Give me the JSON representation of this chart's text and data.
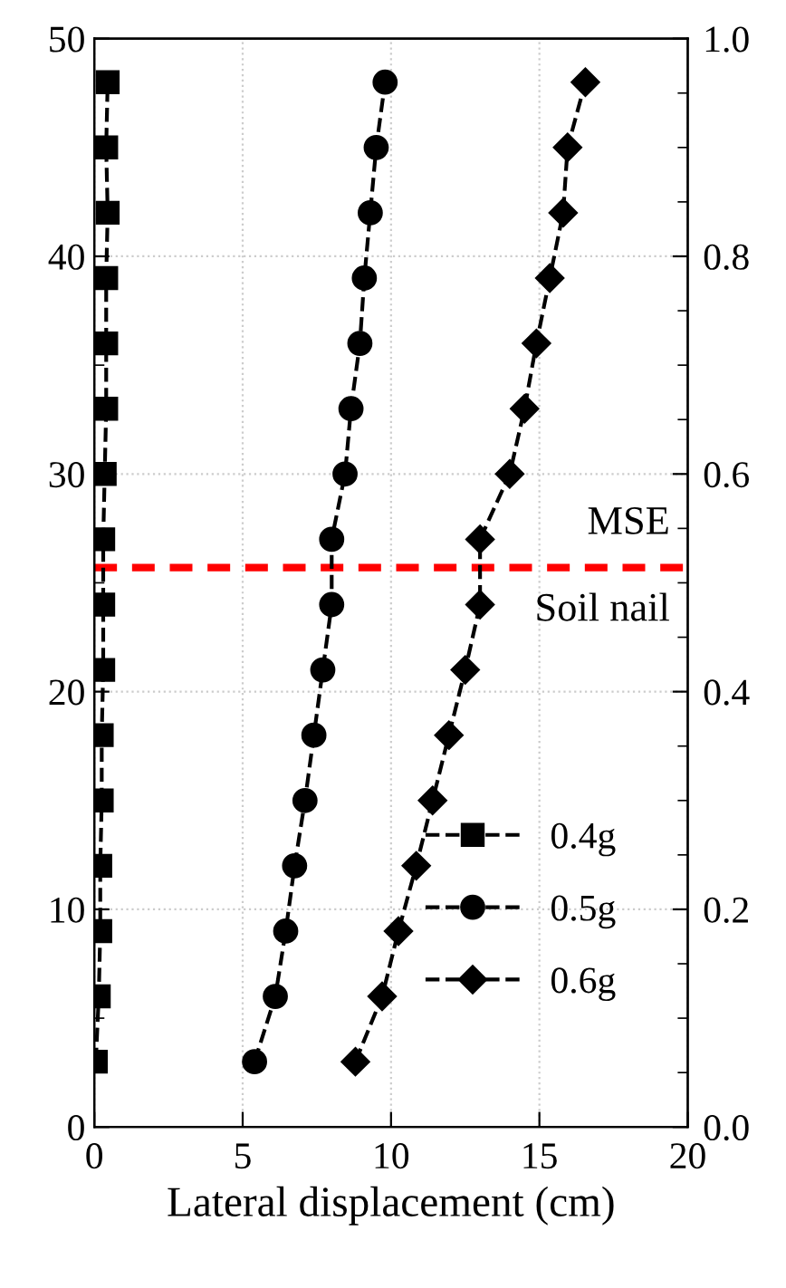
{
  "chart_data": {
    "type": "line",
    "xlabel": "Lateral displacement (cm)",
    "xlim": [
      0,
      20
    ],
    "xticks": [
      0,
      5,
      10,
      15,
      20
    ],
    "ylim": [
      0,
      50
    ],
    "yticks": [
      0,
      10,
      20,
      30,
      40,
      50
    ],
    "y2lim": [
      0,
      1.0
    ],
    "y2ticks": [
      {
        "value": 0,
        "label": "0.0"
      },
      0.2,
      0.4,
      0.6,
      0.8,
      {
        "value": 1.0,
        "label": "1.0"
      }
    ],
    "grid": true,
    "legend": "bottom right",
    "line_style": "dashed",
    "series": [
      {
        "name": "0.4g",
        "color": "#000000",
        "marker": "square",
        "x": [
          0.05,
          0.15,
          0.2,
          0.2,
          0.25,
          0.25,
          0.3,
          0.3,
          0.3,
          0.35,
          0.4,
          0.4,
          0.4,
          0.45,
          0.4,
          0.45
        ],
        "values": [
          3,
          6,
          9,
          12,
          15,
          18,
          21,
          24,
          27,
          30,
          33,
          36,
          39,
          42,
          45,
          48
        ]
      },
      {
        "name": "0.5g",
        "color": "#000000",
        "marker": "circle",
        "x": [
          5.4,
          6.1,
          6.45,
          6.75,
          7.1,
          7.4,
          7.7,
          8.0,
          8.0,
          8.45,
          8.65,
          8.95,
          9.1,
          9.3,
          9.5,
          9.8
        ],
        "values": [
          3,
          6,
          9,
          12,
          15,
          18,
          21,
          24,
          27,
          30,
          33,
          36,
          39,
          42,
          45,
          48
        ]
      },
      {
        "name": "0.6g",
        "color": "#000000",
        "marker": "diamond",
        "x": [
          8.8,
          9.7,
          10.25,
          10.85,
          11.4,
          11.95,
          12.5,
          13.0,
          13.0,
          14.0,
          14.5,
          14.9,
          15.35,
          15.8,
          15.95,
          16.55
        ],
        "values": [
          3,
          6,
          9,
          12,
          15,
          18,
          21,
          24,
          27,
          30,
          33,
          36,
          39,
          42,
          45,
          48
        ]
      }
    ],
    "ref_lines": [
      {
        "axis": "y",
        "value": 25.7,
        "color": "#ff0000",
        "line_style": "dashed"
      }
    ],
    "annotations": [
      "MSE",
      "Soil nail"
    ]
  }
}
